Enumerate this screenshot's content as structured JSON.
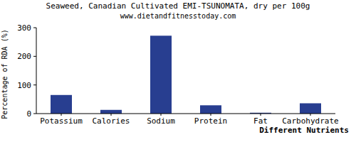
{
  "chart_data": {
    "type": "bar",
    "title": "Seaweed, Canadian Cultivated EMI-TSUNOMATA, dry per 100g",
    "subtitle": "www.dietandfitnesstoday.com",
    "x_label": "Different Nutrients",
    "y_label": "Percentage of RDA (%)",
    "categories": [
      "Potassium",
      "Calories",
      "Sodium",
      "Protein",
      "Fat",
      "Carbohydrate"
    ],
    "values": [
      65,
      13,
      272,
      29,
      3,
      36
    ],
    "color": "#283e90",
    "ylim": [
      0,
      300
    ],
    "yticks": [
      0,
      100,
      200,
      300
    ],
    "grid": false
  }
}
